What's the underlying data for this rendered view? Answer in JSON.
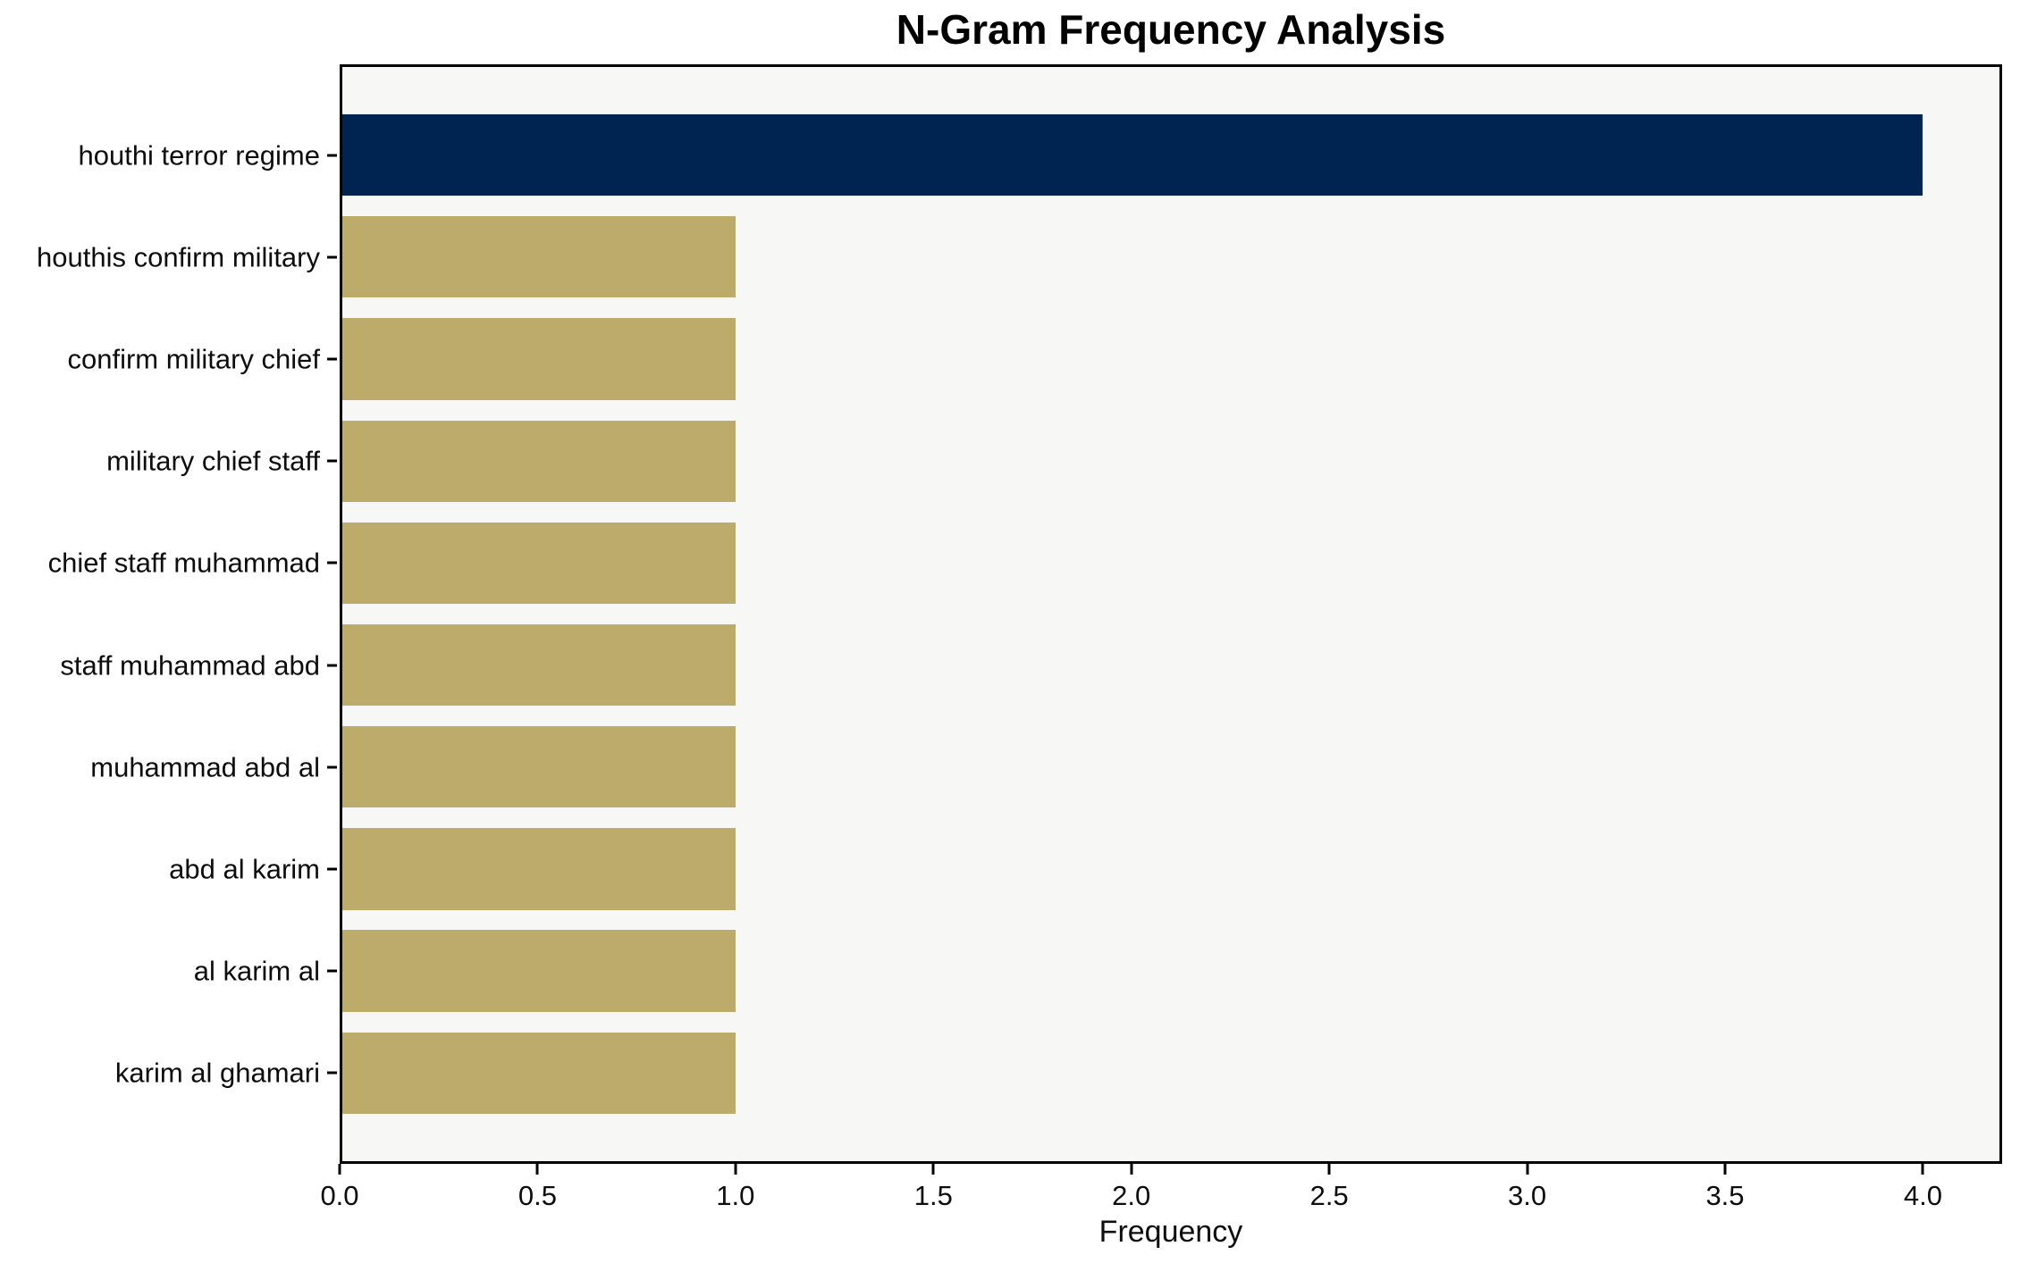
{
  "chart_data": {
    "type": "bar",
    "orientation": "horizontal",
    "title": "N-Gram Frequency Analysis",
    "xlabel": "Frequency",
    "ylabel": "",
    "categories": [
      "houthi terror regime",
      "houthis confirm military",
      "confirm military chief",
      "military chief staff",
      "chief staff muhammad",
      "staff muhammad abd",
      "muhammad abd al",
      "abd al karim",
      "al karim al",
      "karim al ghamari"
    ],
    "values": [
      4,
      1,
      1,
      1,
      1,
      1,
      1,
      1,
      1,
      1
    ],
    "bar_colors": [
      "#002451",
      "#bcab6b",
      "#bcab6b",
      "#bcab6b",
      "#bcab6b",
      "#bcab6b",
      "#bcab6b",
      "#bcab6b",
      "#bcab6b",
      "#bcab6b"
    ],
    "xlim": [
      0,
      4.2
    ],
    "xticks": [
      0.0,
      0.5,
      1.0,
      1.5,
      2.0,
      2.5,
      3.0,
      3.5,
      4.0
    ],
    "xtick_decimals": 1,
    "grid": false,
    "legend": null,
    "colors": {
      "highlight_bar": "#002451",
      "default_bar": "#bcab6b",
      "plot_background": "#f7f7f5",
      "figure_background": "#ffffff",
      "spine": "#000000",
      "text": "#0d0d0d"
    }
  }
}
